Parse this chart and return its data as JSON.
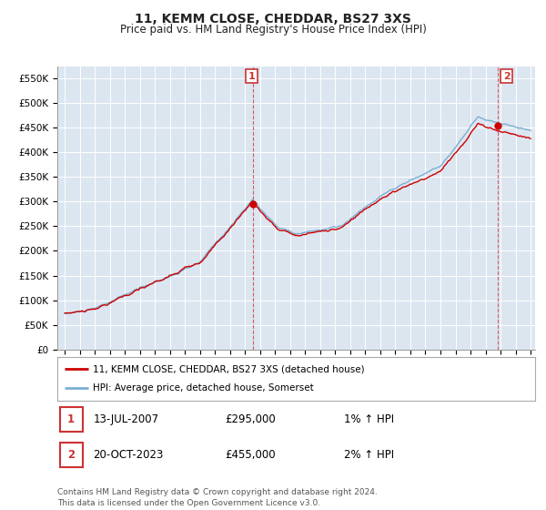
{
  "title": "11, KEMM CLOSE, CHEDDAR, BS27 3XS",
  "subtitle": "Price paid vs. HM Land Registry's House Price Index (HPI)",
  "x_start_year": 1995,
  "x_end_year": 2026,
  "ylim": [
    0,
    575000
  ],
  "yticks": [
    0,
    50000,
    100000,
    150000,
    200000,
    250000,
    300000,
    350000,
    400000,
    450000,
    500000,
    550000
  ],
  "ytick_labels": [
    "£0",
    "£50K",
    "£100K",
    "£150K",
    "£200K",
    "£250K",
    "£300K",
    "£350K",
    "£400K",
    "£450K",
    "£500K",
    "£550K"
  ],
  "hpi_color": "#7bafd4",
  "price_color": "#cc0000",
  "sale1_year": 2007.53,
  "sale1_price": 295000,
  "sale2_year": 2023.8,
  "sale2_price": 455000,
  "legend_house_label": "11, KEMM CLOSE, CHEDDAR, BS27 3XS (detached house)",
  "legend_hpi_label": "HPI: Average price, detached house, Somerset",
  "annotation1_label": "1",
  "annotation2_label": "2",
  "table_row1": [
    "1",
    "13-JUL-2007",
    "£295,000",
    "1% ↑ HPI"
  ],
  "table_row2": [
    "2",
    "20-OCT-2023",
    "£455,000",
    "2% ↑ HPI"
  ],
  "footer": "Contains HM Land Registry data © Crown copyright and database right 2024.\nThis data is licensed under the Open Government Licence v3.0.",
  "bg_color": "#ffffff",
  "plot_bg_color": "#dce6f0",
  "grid_color": "#ffffff"
}
